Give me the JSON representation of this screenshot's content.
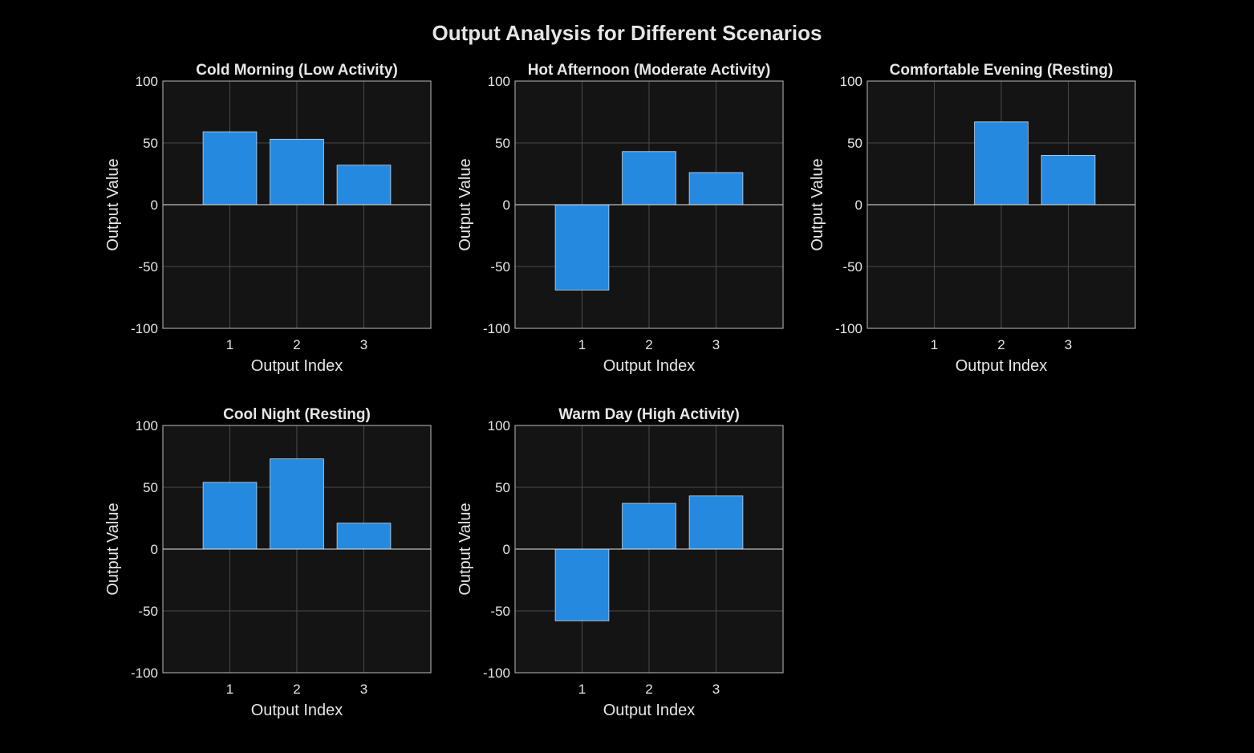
{
  "figure": {
    "title": "Output Analysis for Different Scenarios"
  },
  "colors": {
    "background": "#000000",
    "axes_face": "#141414",
    "bar": "#2589e0",
    "bar_edge": "#c8d8e8",
    "grid": "#4a4a4a",
    "axis_line": "#a0a0a0",
    "zero_line": "#e6e6e6",
    "text": "#e6e6e6"
  },
  "chart_data": [
    {
      "type": "bar",
      "title": "Cold Morning (Low Activity)",
      "xlabel": "Output Index",
      "ylabel": "Output Value",
      "categories": [
        "1",
        "2",
        "3"
      ],
      "values": [
        59,
        53,
        32
      ],
      "xlim": [
        0,
        4
      ],
      "ylim": [
        -100,
        100
      ],
      "yticks": [
        -100,
        -50,
        0,
        50,
        100
      ],
      "grid": true
    },
    {
      "type": "bar",
      "title": "Hot Afternoon (Moderate Activity)",
      "xlabel": "Output Index",
      "ylabel": "Output Value",
      "categories": [
        "1",
        "2",
        "3"
      ],
      "values": [
        -69,
        43,
        26
      ],
      "xlim": [
        0,
        4
      ],
      "ylim": [
        -100,
        100
      ],
      "yticks": [
        -100,
        -50,
        0,
        50,
        100
      ],
      "grid": true
    },
    {
      "type": "bar",
      "title": "Comfortable Evening (Resting)",
      "xlabel": "Output Index",
      "ylabel": "Output Value",
      "categories": [
        "1",
        "2",
        "3"
      ],
      "values": [
        0,
        67,
        40
      ],
      "xlim": [
        0,
        4
      ],
      "ylim": [
        -100,
        100
      ],
      "yticks": [
        -100,
        -50,
        0,
        50,
        100
      ],
      "grid": true
    },
    {
      "type": "bar",
      "title": "Cool Night (Resting)",
      "xlabel": "Output Index",
      "ylabel": "Output Value",
      "categories": [
        "1",
        "2",
        "3"
      ],
      "values": [
        54,
        73,
        21
      ],
      "xlim": [
        0,
        4
      ],
      "ylim": [
        -100,
        100
      ],
      "yticks": [
        -100,
        -50,
        0,
        50,
        100
      ],
      "grid": true
    },
    {
      "type": "bar",
      "title": "Warm Day (High Activity)",
      "xlabel": "Output Index",
      "ylabel": "Output Value",
      "categories": [
        "1",
        "2",
        "3"
      ],
      "values": [
        -58,
        37,
        43
      ],
      "xlim": [
        0,
        4
      ],
      "ylim": [
        -100,
        100
      ],
      "yticks": [
        -100,
        -50,
        0,
        50,
        100
      ],
      "grid": true
    }
  ]
}
